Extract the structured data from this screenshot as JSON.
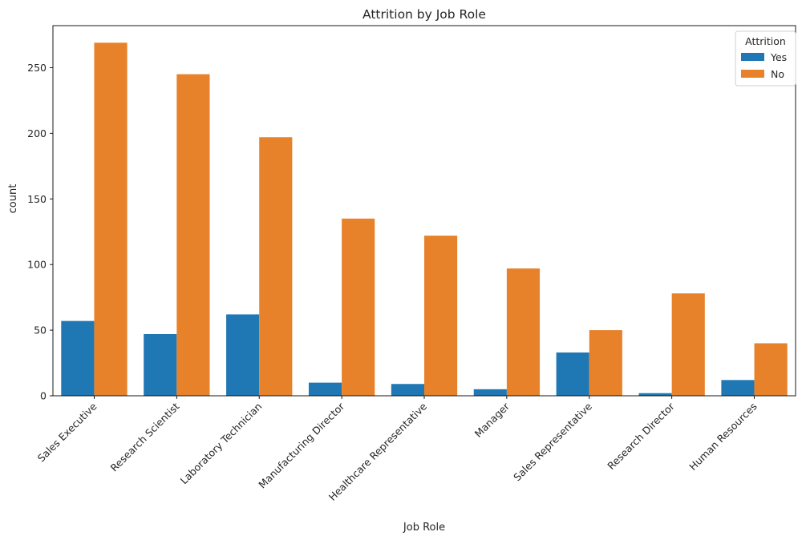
{
  "chart_data": {
    "type": "bar",
    "title": "Attrition by Job Role",
    "xlabel": "Job Role",
    "ylabel": "count",
    "categories": [
      "Sales Executive",
      "Research Scientist",
      "Laboratory Technician",
      "Manufacturing Director",
      "Healthcare Representative",
      "Manager",
      "Sales Representative",
      "Research Director",
      "Human Resources"
    ],
    "series": [
      {
        "name": "Yes",
        "color": "#1f77b4",
        "values": [
          57,
          47,
          62,
          10,
          9,
          5,
          33,
          2,
          12
        ]
      },
      {
        "name": "No",
        "color": "#e8822a",
        "values": [
          269,
          245,
          197,
          135,
          122,
          97,
          50,
          78,
          40
        ]
      }
    ],
    "ylim": [
      0,
      282
    ],
    "yticks": [
      0,
      50,
      100,
      150,
      200,
      250
    ],
    "legend": {
      "title": "Attrition",
      "placement": "top-right"
    },
    "grid": false,
    "xtick_rotation": 45
  }
}
